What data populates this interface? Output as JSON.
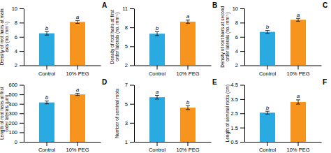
{
  "chart_data": [
    {
      "type": "bar",
      "title": "A",
      "y_label": "Density of root hairs at main\naxis (no. mm⁻¹)",
      "categories": [
        "Control",
        "10% PEG"
      ],
      "values": [
        6.5,
        8.1
      ],
      "errors": [
        0.25,
        0.2
      ],
      "annotations": [
        "b",
        "a"
      ],
      "colors": [
        "#29ABE2",
        "#F7941D"
      ],
      "ylim": [
        2,
        10
      ],
      "yticks": [
        2,
        4,
        6,
        8,
        10
      ],
      "grid": false
    },
    {
      "type": "bar",
      "title": "B",
      "y_label": "Density of root hairs at first\norder laterals (no. mm⁻¹)",
      "categories": [
        "Control",
        "10% PEG"
      ],
      "values": [
        7.0,
        8.9
      ],
      "errors": [
        0.3,
        0.25
      ],
      "annotations": [
        "b",
        "a"
      ],
      "colors": [
        "#29ABE2",
        "#F7941D"
      ],
      "ylim": [
        2,
        11
      ],
      "yticks": [
        2,
        5,
        8,
        11
      ],
      "grid": false
    },
    {
      "type": "bar",
      "title": "C",
      "y_label": "Density of root hairs at second\norder laterals (no. mm⁻¹)",
      "categories": [
        "Control",
        "10% PEG"
      ],
      "values": [
        6.7,
        8.4
      ],
      "errors": [
        0.2,
        0.2
      ],
      "annotations": [
        "b",
        "a"
      ],
      "colors": [
        "#29ABE2",
        "#F7941D"
      ],
      "ylim": [
        2,
        10
      ],
      "yticks": [
        2,
        4,
        6,
        8,
        10
      ],
      "grid": false
    },
    {
      "type": "bar",
      "title": "D",
      "y_label": "Length of root hairs at first\norder laterals (μm)",
      "categories": [
        "Control",
        "10% PEG"
      ],
      "values": [
        415,
        500
      ],
      "errors": [
        15,
        12
      ],
      "annotations": [
        "b",
        "a"
      ],
      "colors": [
        "#29ABE2",
        "#F7941D"
      ],
      "ylim": [
        0,
        600
      ],
      "yticks": [
        0,
        100,
        200,
        300,
        400,
        500,
        600
      ],
      "grid": false
    },
    {
      "type": "bar",
      "title": "E",
      "y_label": "Number of seminal roots",
      "categories": [
        "Control",
        "10% PEG"
      ],
      "values": [
        5.7,
        4.6
      ],
      "errors": [
        0.2,
        0.2
      ],
      "annotations": [
        "a",
        "b"
      ],
      "colors": [
        "#29ABE2",
        "#F7941D"
      ],
      "ylim": [
        1,
        7
      ],
      "yticks": [
        1,
        3,
        5,
        7
      ],
      "grid": false
    },
    {
      "type": "bar",
      "title": "F",
      "y_label": "Length of seminal roots (cm)",
      "categories": [
        "Control",
        "10% PEG"
      ],
      "values": [
        2.55,
        3.3
      ],
      "errors": [
        0.1,
        0.15
      ],
      "annotations": [
        "b",
        "a"
      ],
      "colors": [
        "#29ABE2",
        "#F7941D"
      ],
      "ylim": [
        0.5,
        4.5
      ],
      "yticks": [
        0.5,
        1.5,
        2.5,
        3.5,
        4.5
      ],
      "grid": false
    }
  ]
}
